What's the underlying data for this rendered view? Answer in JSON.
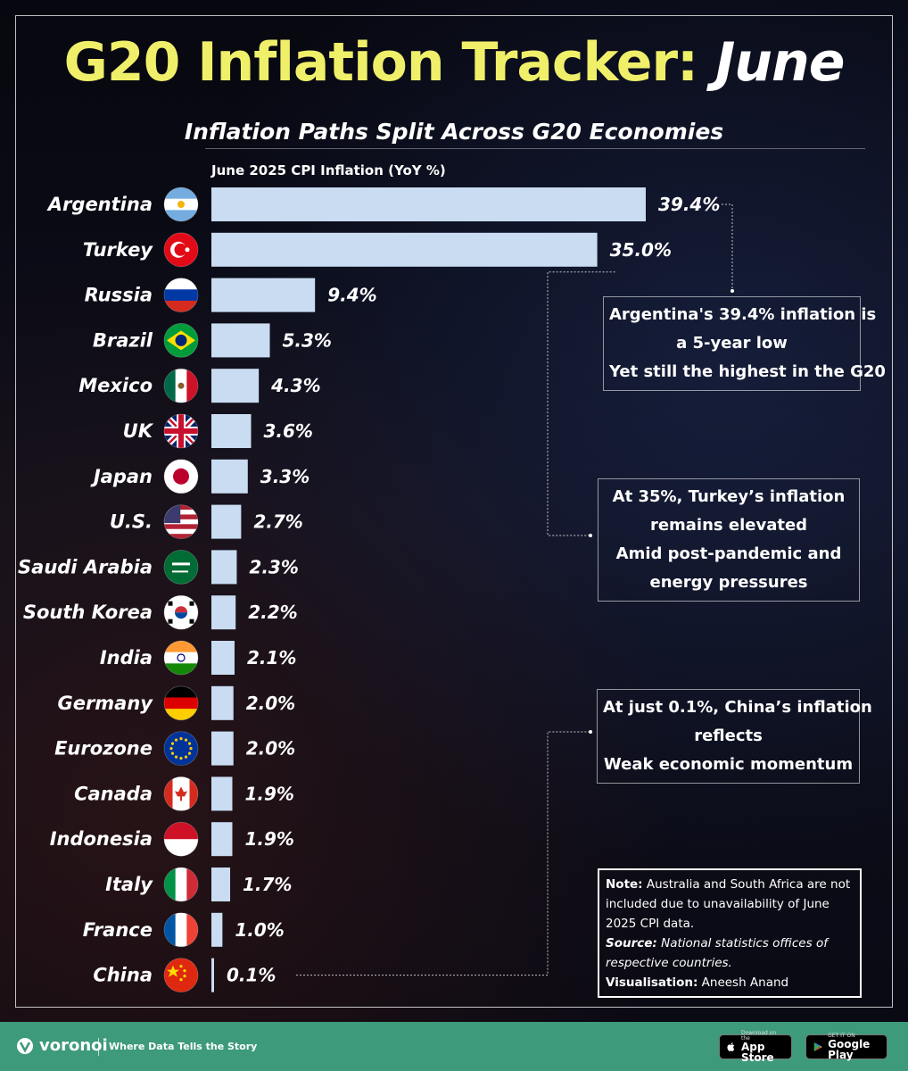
{
  "header": {
    "title_main": "G20 Inflation Tracker: ",
    "title_month": "June",
    "subtitle": "Inflation Paths Split Across G20 Economies"
  },
  "chart_data": {
    "type": "bar",
    "orientation": "horizontal",
    "axis_title": "June 2025 CPI Inflation (YoY %)",
    "categories": [
      "Argentina",
      "Turkey",
      "Russia",
      "Brazil",
      "Mexico",
      "UK",
      "Japan",
      "U.S.",
      "Saudi Arabia",
      "South Korea",
      "India",
      "Germany",
      "Eurozone",
      "Canada",
      "Indonesia",
      "Italy",
      "France",
      "China"
    ],
    "values": [
      39.4,
      35.0,
      9.4,
      5.3,
      4.3,
      3.6,
      3.3,
      2.7,
      2.3,
      2.2,
      2.1,
      2.0,
      2.0,
      1.9,
      1.9,
      1.7,
      1.0,
      0.1
    ],
    "value_labels": [
      "39.4%",
      "35.0%",
      "9.4%",
      "5.3%",
      "4.3%",
      "3.6%",
      "3.3%",
      "2.7%",
      "2.3%",
      "2.2%",
      "2.1%",
      "2.0%",
      "2.0%",
      "1.9%",
      "1.9%",
      "1.7%",
      "1.0%",
      "0.1%"
    ],
    "bar_color": "#c9dcf2",
    "grid": false
  },
  "flags": [
    "argentina-flag-icon",
    "turkey-flag-icon",
    "russia-flag-icon",
    "brazil-flag-icon",
    "mexico-flag-icon",
    "uk-flag-icon",
    "japan-flag-icon",
    "us-flag-icon",
    "saudi-arabia-flag-icon",
    "south-korea-flag-icon",
    "india-flag-icon",
    "germany-flag-icon",
    "eurozone-flag-icon",
    "canada-flag-icon",
    "indonesia-flag-icon",
    "italy-flag-icon",
    "france-flag-icon",
    "china-flag-icon"
  ],
  "callouts": {
    "argentina": [
      "Argentina's 39.4% inflation is",
      "a 5-year low",
      "Yet still the highest in the G20"
    ],
    "turkey": [
      "At 35%, Turkey’s inflation",
      "remains elevated",
      "Amid post-pandemic and",
      "energy pressures"
    ],
    "china": [
      "At just 0.1%, China’s inflation",
      "reflects",
      "Weak economic momentum"
    ]
  },
  "note": {
    "note_label": "Note:",
    "note_text": " Australia and South Africa are not included due to unavailability of June 2025 CPI data.",
    "source_label": "Source:",
    "source_text": " National statistics offices of respective countries.",
    "vis_label": "Visualisation:",
    "vis_text": " Aneesh Anand"
  },
  "footer": {
    "brand": "voronoi",
    "tagline": "Where Data Tells the Story",
    "appstore_small": "Download on the",
    "appstore_big": "App Store",
    "play_small": "GET IT ON",
    "play_big": "Google Play",
    "accent_color": "#3d9a7a"
  }
}
